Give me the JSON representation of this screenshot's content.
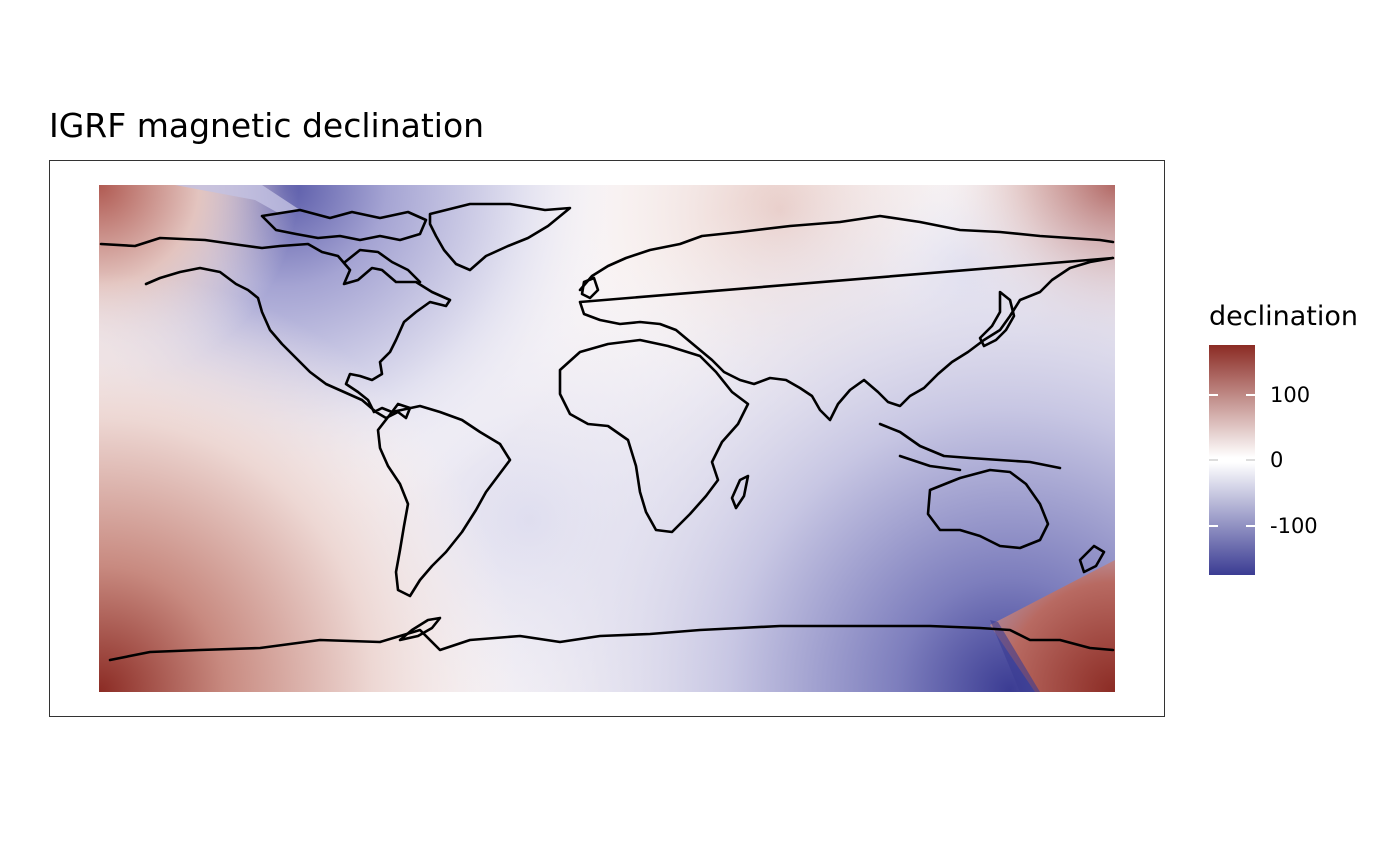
{
  "title": "IGRF magnetic declination",
  "legend": {
    "title": "declination",
    "breaks": [
      100,
      0,
      -100
    ],
    "labels": [
      "100",
      "0",
      "-100"
    ],
    "range": [
      -170,
      180
    ],
    "colors": {
      "high": "#8B2B24",
      "mid": "#FFFFFF",
      "low": "#3B3C93"
    }
  },
  "map": {
    "projection": "equirectangular",
    "extent": {
      "lon": [
        -180,
        180
      ],
      "lat": [
        -90,
        90
      ]
    },
    "coastline_color": "#000000",
    "landmasses": [
      "north-america",
      "greenland",
      "south-america",
      "africa",
      "eurasia",
      "australia",
      "antarctica",
      "arctic-archipelago",
      "japan",
      "indonesia",
      "madagascar",
      "new-zealand",
      "british-isles"
    ]
  }
}
